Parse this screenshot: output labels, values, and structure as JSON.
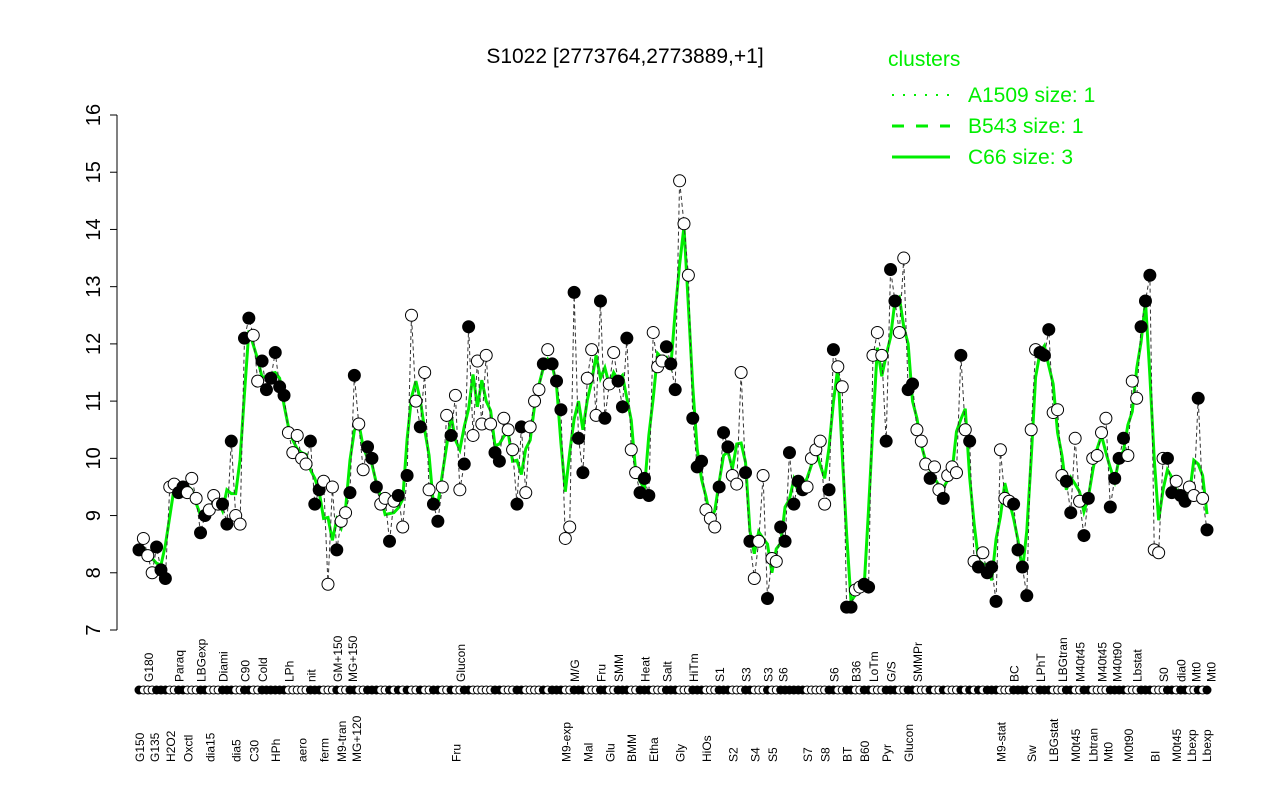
{
  "chart_data": {
    "type": "scatter",
    "title": "S1022 [2773764,2773889,+1]",
    "xlabel": "",
    "ylabel": "",
    "ylim": [
      7,
      16
    ],
    "yticks": [
      "7",
      "8",
      "9",
      "10",
      "11",
      "12",
      "13",
      "14",
      "15",
      "16"
    ],
    "grid": false,
    "legend": {
      "placement": "top-right",
      "title": "clusters",
      "entries": [
        {
          "name": "A1509 size: 1",
          "style": "dotted"
        },
        {
          "name": "B543 size: 1",
          "style": "dashed"
        },
        {
          "name": "C66 size: 3",
          "style": "solid"
        }
      ]
    },
    "colors": {
      "line": "#00ee00",
      "legend": "#00ee00",
      "points": "#000000"
    },
    "points": [
      [
        "G150",
        8.4,
        1
      ],
      [
        "",
        8.6,
        0
      ],
      [
        "G180",
        8.3,
        0
      ],
      [
        "G135",
        8.0,
        0
      ],
      [
        "",
        8.45,
        1
      ],
      [
        "",
        8.05,
        1
      ],
      [
        "",
        7.9,
        1
      ],
      [
        "H2O2",
        9.5,
        0
      ],
      [
        "",
        9.55,
        0
      ],
      [
        "Paraq",
        9.4,
        1
      ],
      [
        "",
        9.5,
        1
      ],
      [
        "Oxctl",
        9.4,
        0
      ],
      [
        "",
        9.65,
        0
      ],
      [
        "",
        9.3,
        0
      ],
      [
        "LBGexp",
        8.7,
        1
      ],
      [
        "",
        9.0,
        1
      ],
      [
        "dia15",
        9.1,
        0
      ],
      [
        "",
        9.35,
        0
      ],
      [
        "",
        9.2,
        0
      ],
      [
        "Diami",
        9.2,
        1
      ],
      [
        "",
        8.85,
        1
      ],
      [
        "",
        10.3,
        1
      ],
      [
        "dia5",
        9.0,
        0
      ],
      [
        "",
        8.85,
        0
      ],
      [
        "C90",
        12.1,
        1
      ],
      [
        "",
        12.45,
        1
      ],
      [
        "C30",
        12.15,
        0
      ],
      [
        "",
        11.35,
        0
      ],
      [
        "Cold",
        11.7,
        1
      ],
      [
        "",
        11.2,
        1
      ],
      [
        "",
        11.4,
        1
      ],
      [
        "HPh",
        11.85,
        1
      ],
      [
        "",
        11.25,
        1
      ],
      [
        "",
        11.1,
        1
      ],
      [
        "LPh",
        10.45,
        0
      ],
      [
        "",
        10.1,
        0
      ],
      [
        "",
        10.4,
        0
      ],
      [
        "aero",
        10.0,
        0
      ],
      [
        "",
        9.9,
        0
      ],
      [
        "nit",
        10.3,
        1
      ],
      [
        "",
        9.2,
        1
      ],
      [
        "",
        9.45,
        1
      ],
      [
        "ferm",
        9.6,
        0
      ],
      [
        "",
        7.8,
        0
      ],
      [
        "",
        9.5,
        0
      ],
      [
        "GM+150",
        8.4,
        1
      ],
      [
        "M9-tran",
        8.9,
        0
      ],
      [
        "",
        9.05,
        0
      ],
      [
        "MG+150",
        9.4,
        1
      ],
      [
        "MG+120",
        11.45,
        1
      ],
      [
        "",
        10.6,
        0
      ],
      [
        "",
        9.8,
        0
      ],
      [
        "",
        10.2,
        1
      ],
      [
        "",
        10.0,
        1
      ],
      [
        "",
        9.5,
        1
      ],
      [
        "",
        9.2,
        0
      ],
      [
        "",
        9.3,
        0
      ],
      [
        "",
        8.55,
        1
      ],
      [
        "",
        9.25,
        0
      ],
      [
        "",
        9.35,
        1
      ],
      [
        "",
        8.8,
        0
      ],
      [
        "",
        9.7,
        1
      ],
      [
        "",
        12.5,
        0
      ],
      [
        "",
        11.0,
        0
      ],
      [
        "",
        10.55,
        1
      ],
      [
        "",
        11.5,
        0
      ],
      [
        "",
        9.45,
        0
      ],
      [
        "",
        9.2,
        1
      ],
      [
        "",
        8.9,
        1
      ],
      [
        "",
        9.5,
        0
      ],
      [
        "",
        10.75,
        0
      ],
      [
        "",
        10.4,
        1
      ],
      [
        "Fru",
        11.1,
        0
      ],
      [
        "Glucon",
        9.45,
        0
      ],
      [
        "",
        9.9,
        1
      ],
      [
        "",
        12.3,
        1
      ],
      [
        "",
        10.4,
        0
      ],
      [
        "",
        11.7,
        0
      ],
      [
        "",
        10.6,
        0
      ],
      [
        "",
        11.8,
        0
      ],
      [
        "",
        10.6,
        0
      ],
      [
        "",
        10.1,
        1
      ],
      [
        "",
        9.95,
        1
      ],
      [
        "",
        10.7,
        0
      ],
      [
        "",
        10.5,
        0
      ],
      [
        "",
        10.15,
        0
      ],
      [
        "",
        9.2,
        1
      ],
      [
        "",
        10.55,
        1
      ],
      [
        "",
        9.4,
        0
      ],
      [
        "",
        10.55,
        0
      ],
      [
        "",
        11.0,
        0
      ],
      [
        "",
        11.2,
        0
      ],
      [
        "",
        11.65,
        1
      ],
      [
        "",
        11.9,
        0
      ],
      [
        "",
        11.65,
        1
      ],
      [
        "",
        11.35,
        1
      ],
      [
        "",
        10.85,
        1
      ],
      [
        "M9-exp",
        8.6,
        0
      ],
      [
        "",
        8.8,
        0
      ],
      [
        "M/G",
        12.9,
        1
      ],
      [
        "",
        10.35,
        1
      ],
      [
        "",
        9.75,
        1
      ],
      [
        "Mal",
        11.4,
        0
      ],
      [
        "",
        11.9,
        0
      ],
      [
        "",
        10.75,
        0
      ],
      [
        "Fru",
        12.75,
        1
      ],
      [
        "",
        10.7,
        1
      ],
      [
        "Glu",
        11.3,
        0
      ],
      [
        "",
        11.85,
        0
      ],
      [
        "SMM",
        11.35,
        1
      ],
      [
        "",
        10.9,
        1
      ],
      [
        "",
        12.1,
        1
      ],
      [
        "BMM",
        10.15,
        0
      ],
      [
        "",
        9.75,
        0
      ],
      [
        "",
        9.4,
        1
      ],
      [
        "Heat",
        9.65,
        1
      ],
      [
        "",
        9.35,
        1
      ],
      [
        "Etha",
        12.2,
        0
      ],
      [
        "",
        11.6,
        0
      ],
      [
        "",
        11.7,
        0
      ],
      [
        "Salt",
        11.95,
        1
      ],
      [
        "",
        11.65,
        1
      ],
      [
        "",
        11.2,
        1
      ],
      [
        "Gly",
        14.85,
        0
      ],
      [
        "",
        14.1,
        0
      ],
      [
        "",
        13.2,
        0
      ],
      [
        "HiTm",
        10.7,
        1
      ],
      [
        "",
        9.85,
        1
      ],
      [
        "",
        9.95,
        1
      ],
      [
        "HiOs",
        9.1,
        0
      ],
      [
        "",
        8.95,
        0
      ],
      [
        "",
        8.8,
        0
      ],
      [
        "S1",
        9.5,
        1
      ],
      [
        "",
        10.45,
        1
      ],
      [
        "",
        10.2,
        1
      ],
      [
        "S2",
        9.7,
        0
      ],
      [
        "",
        9.55,
        0
      ],
      [
        "",
        11.5,
        0
      ],
      [
        "S3",
        9.75,
        1
      ],
      [
        "",
        8.55,
        1
      ],
      [
        "S4",
        7.9,
        0
      ],
      [
        "",
        8.55,
        0
      ],
      [
        "",
        9.7,
        0
      ],
      [
        "S3",
        7.55,
        1
      ],
      [
        "S5",
        8.25,
        0
      ],
      [
        "",
        8.2,
        0
      ],
      [
        "S6",
        8.8,
        1
      ],
      [
        "",
        8.55,
        1
      ],
      [
        "",
        10.1,
        1
      ],
      [
        "",
        9.2,
        1
      ],
      [
        "",
        9.6,
        1
      ],
      [
        "",
        9.45,
        1
      ],
      [
        "S7",
        9.5,
        0
      ],
      [
        "",
        10.0,
        0
      ],
      [
        "",
        10.15,
        0
      ],
      [
        "",
        10.3,
        0
      ],
      [
        "S8",
        9.2,
        0
      ],
      [
        "",
        9.45,
        1
      ],
      [
        "S6",
        11.9,
        1
      ],
      [
        "",
        11.6,
        0
      ],
      [
        "",
        11.25,
        0
      ],
      [
        "BT",
        7.4,
        1
      ],
      [
        "",
        7.4,
        1
      ],
      [
        "B36",
        7.7,
        0
      ],
      [
        "",
        7.75,
        0
      ],
      [
        "B60",
        7.8,
        1
      ],
      [
        "",
        7.75,
        1
      ],
      [
        "LoTm",
        11.8,
        0
      ],
      [
        "",
        12.2,
        0
      ],
      [
        "",
        11.8,
        0
      ],
      [
        "Pyr",
        10.3,
        1
      ],
      [
        "G/S",
        13.3,
        1
      ],
      [
        "",
        12.75,
        1
      ],
      [
        "",
        12.2,
        0
      ],
      [
        "",
        13.5,
        0
      ],
      [
        "Glucon",
        11.2,
        1
      ],
      [
        "",
        11.3,
        1
      ],
      [
        "SMMPr",
        10.5,
        0
      ],
      [
        "",
        10.3,
        0
      ],
      [
        "",
        9.9,
        0
      ],
      [
        "",
        9.65,
        1
      ],
      [
        "",
        9.85,
        0
      ],
      [
        "",
        9.45,
        0
      ],
      [
        "",
        9.3,
        1
      ],
      [
        "",
        9.7,
        0
      ],
      [
        "",
        9.85,
        0
      ],
      [
        "",
        9.75,
        0
      ],
      [
        "",
        11.8,
        1
      ],
      [
        "",
        10.5,
        0
      ],
      [
        "",
        10.3,
        1
      ],
      [
        "",
        8.2,
        0
      ],
      [
        "",
        8.1,
        1
      ],
      [
        "",
        8.35,
        0
      ],
      [
        "",
        8.0,
        1
      ],
      [
        "",
        8.1,
        1
      ],
      [
        "",
        7.5,
        1
      ],
      [
        "M9-stat",
        10.15,
        0
      ],
      [
        "",
        9.3,
        0
      ],
      [
        "",
        9.25,
        0
      ],
      [
        "BC",
        9.2,
        1
      ],
      [
        "",
        8.4,
        1
      ],
      [
        "",
        8.1,
        1
      ],
      [
        "",
        7.6,
        1
      ],
      [
        "Sw",
        10.5,
        0
      ],
      [
        "",
        11.9,
        0
      ],
      [
        "LPhT",
        11.85,
        1
      ],
      [
        "",
        11.8,
        1
      ],
      [
        "",
        12.25,
        1
      ],
      [
        "LBGstat",
        10.8,
        0
      ],
      [
        "",
        10.85,
        0
      ],
      [
        "LBGtran",
        9.7,
        0
      ],
      [
        "",
        9.6,
        1
      ],
      [
        "",
        9.05,
        1
      ],
      [
        "M0t45",
        10.35,
        0
      ],
      [
        "M40t45",
        9.25,
        0
      ],
      [
        "",
        8.65,
        1
      ],
      [
        "",
        9.3,
        1
      ],
      [
        "Lbtran",
        10.0,
        0
      ],
      [
        "",
        10.05,
        0
      ],
      [
        "M40t45",
        10.45,
        0
      ],
      [
        "Mt0",
        10.7,
        0
      ],
      [
        "",
        9.15,
        1
      ],
      [
        "M40t90",
        9.65,
        1
      ],
      [
        "",
        10.0,
        1
      ],
      [
        "",
        10.35,
        1
      ],
      [
        "M0t90",
        10.05,
        0
      ],
      [
        "",
        11.35,
        0
      ],
      [
        "Lbstat",
        11.05,
        0
      ],
      [
        "",
        12.3,
        1
      ],
      [
        "",
        12.75,
        1
      ],
      [
        "",
        13.2,
        1
      ],
      [
        "BI",
        8.4,
        0
      ],
      [
        "",
        8.35,
        0
      ],
      [
        "S0",
        10.0,
        0
      ],
      [
        "",
        10.0,
        1
      ],
      [
        "",
        9.4,
        1
      ],
      [
        "M0t45",
        9.6,
        0
      ],
      [
        "dia0",
        9.35,
        1
      ],
      [
        "",
        9.25,
        1
      ],
      [
        "Lbexp",
        9.5,
        0
      ],
      [
        "Mt0",
        9.35,
        0
      ],
      [
        "Lbexp",
        11.05,
        1
      ],
      [
        "Mt0",
        9.3,
        0
      ],
      [
        "",
        8.75,
        1
      ]
    ]
  }
}
